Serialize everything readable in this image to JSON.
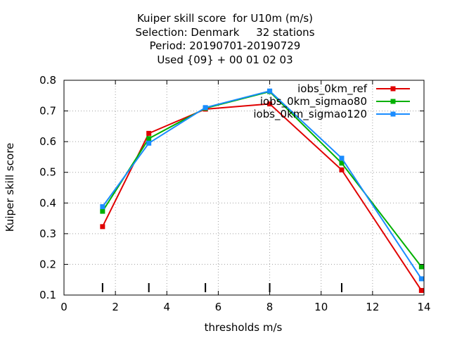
{
  "chart_data": {
    "type": "line",
    "title_lines": [
      "Kuiper skill score  for U10m (m/s)",
      "Selection: Denmark     32 stations",
      "Period: 20190701-20190729",
      "Used {09} + 00 01 02 03"
    ],
    "xlabel": "thresholds m/s",
    "ylabel": "Kuiper skill score",
    "xlim": [
      0,
      14
    ],
    "ylim": [
      0.1,
      0.8
    ],
    "xticks": [
      0,
      2,
      4,
      6,
      8,
      10,
      12,
      14
    ],
    "yticks": [
      0.1,
      0.2,
      0.3,
      0.4,
      0.5,
      0.6,
      0.7,
      0.8
    ],
    "threshold_marks": [
      1.5,
      3.3,
      5.5,
      8.0,
      10.8
    ],
    "grid": true,
    "legend_position": "top-right",
    "series": [
      {
        "name": "iobs_0km_ref",
        "color": "#e00000",
        "x": [
          1.5,
          3.3,
          5.5,
          8.0,
          10.8,
          13.9
        ],
        "y": [
          0.323,
          0.627,
          0.706,
          0.723,
          0.508,
          0.115
        ]
      },
      {
        "name": "iobs_0km_sigmao80",
        "color": "#00b000",
        "x": [
          1.5,
          3.3,
          5.5,
          8.0,
          10.8,
          13.9
        ],
        "y": [
          0.373,
          0.61,
          0.709,
          0.763,
          0.53,
          0.192
        ]
      },
      {
        "name": "iobs_0km_sigmao120",
        "color": "#1a8cff",
        "x": [
          1.5,
          3.3,
          5.5,
          8.0,
          10.8,
          13.9
        ],
        "y": [
          0.388,
          0.595,
          0.711,
          0.765,
          0.546,
          0.153
        ]
      }
    ]
  }
}
